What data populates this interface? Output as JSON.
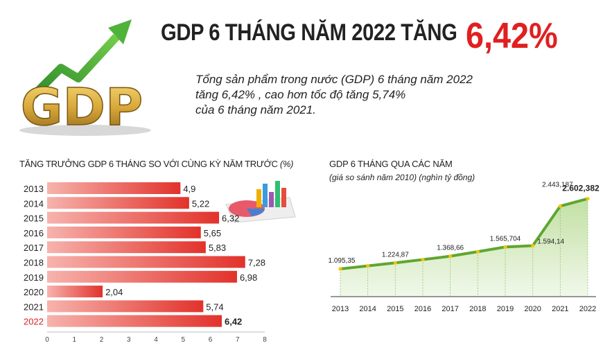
{
  "header": {
    "title_main": "GDP 6 THÁNG NĂM 2022 TĂNG",
    "title_accent": "6,42%",
    "intro_lines": [
      "Tổng sản phẩm trong nước (GDP) 6 tháng năm 2022",
      "tăng 6,42% , cao hơn tốc độ tăng 5,74%",
      "của 6 tháng năm 2021."
    ],
    "logo_text": "GDP"
  },
  "colors": {
    "accent": "#e02020",
    "bar_light": "#f7b3ad",
    "bar_dark": "#e2322b",
    "line": "#5fa62f",
    "area": "#d9ecc7",
    "marker": "#f5c400"
  },
  "chart_data": [
    {
      "type": "bar",
      "orientation": "horizontal",
      "title": "TĂNG TRƯỞNG GDP 6 THÁNG SO VỚI CÙNG KỲ NĂM TRƯỚC",
      "title_unit": "(%)",
      "categories": [
        "2013",
        "2014",
        "2015",
        "2016",
        "2017",
        "2018",
        "2019",
        "2020",
        "2021",
        "2022"
      ],
      "values": [
        4.9,
        5.22,
        6.32,
        5.65,
        5.83,
        7.28,
        6.98,
        2.04,
        5.74,
        6.42
      ],
      "value_labels": [
        "4,9",
        "5,22",
        "6,32",
        "5,65",
        "5,83",
        "7,28",
        "6,98",
        "2,04",
        "5,74",
        "6,42"
      ],
      "highlight_category": "2022",
      "xlim": [
        0,
        8
      ],
      "xticks": [
        "0",
        "1",
        "2",
        "3",
        "4",
        "5",
        "6",
        "7",
        "8"
      ],
      "grid": false
    },
    {
      "type": "area",
      "title": "GDP 6 THÁNG QUA CÁC NĂM",
      "subtitle": "(giá so sánh năm 2010) (nghìn tỷ đồng)",
      "categories": [
        "2013",
        "2014",
        "2015",
        "2016",
        "2017",
        "2018",
        "2019",
        "2020",
        "2021",
        "2022"
      ],
      "values": [
        1095.35,
        1160,
        1224.87,
        1295,
        1368.66,
        1465,
        1565.704,
        1594.14,
        2443.187,
        2602.382
      ],
      "point_labels": [
        "1.095,35",
        "",
        "1.224,87",
        "",
        "1.368,66",
        "",
        "1.565,704",
        "1.594,14",
        "2.443,187",
        "2.602,382"
      ],
      "highlight_category": "2022",
      "ylim": [
        500,
        3000
      ],
      "grid": false
    }
  ]
}
